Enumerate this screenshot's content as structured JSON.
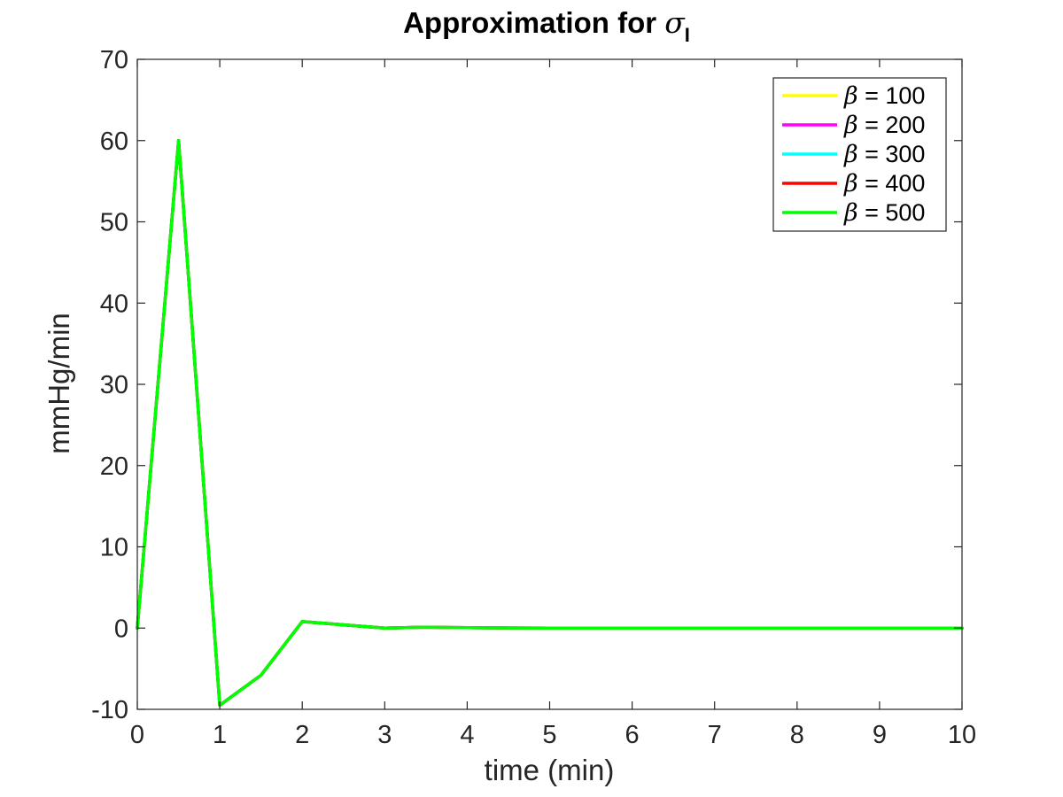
{
  "chart_data": {
    "type": "line",
    "title": {
      "text": "Approximation for ",
      "symbol": "σ",
      "subscript": "I"
    },
    "xlabel": "time (min)",
    "ylabel": "mmHg/min",
    "xlim": [
      0,
      10
    ],
    "ylim": [
      -10,
      70
    ],
    "xticks": [
      "0",
      "1",
      "2",
      "3",
      "4",
      "5",
      "6",
      "7",
      "8",
      "9",
      "10"
    ],
    "yticks": [
      "-10",
      "0",
      "10",
      "20",
      "30",
      "40",
      "50",
      "60",
      "70"
    ],
    "grid": false,
    "legend_position": "top-right",
    "x": [
      0,
      0.5,
      1,
      1.5,
      2,
      2.5,
      3,
      3.5,
      4,
      4.5,
      5,
      5.5,
      6,
      6.5,
      7,
      7.5,
      8,
      8.5,
      9,
      9.5,
      10
    ],
    "series": [
      {
        "legend_symbol": "β",
        "legend_value": "= 100",
        "color": "#ffff00",
        "values": [
          0,
          60,
          -9.5,
          -5.8,
          0.8,
          0.4,
          0.0,
          0.1,
          0.05,
          0.02,
          0,
          0,
          0,
          0,
          0,
          0,
          0,
          0,
          0,
          0,
          0
        ]
      },
      {
        "legend_symbol": "β",
        "legend_value": "= 200",
        "color": "#ff00ff",
        "values": [
          0,
          60,
          -9.5,
          -5.8,
          0.8,
          0.4,
          0.0,
          0.1,
          0.05,
          0.02,
          0,
          0,
          0,
          0,
          0,
          0,
          0,
          0,
          0,
          0,
          0
        ]
      },
      {
        "legend_symbol": "β",
        "legend_value": "= 300",
        "color": "#00ffff",
        "values": [
          0,
          60,
          -9.5,
          -5.8,
          0.8,
          0.4,
          0.0,
          0.1,
          0.05,
          0.02,
          0,
          0,
          0,
          0,
          0,
          0,
          0,
          0,
          0,
          0,
          0
        ]
      },
      {
        "legend_symbol": "β",
        "legend_value": "= 400",
        "color": "#ff0000",
        "values": [
          0,
          60,
          -9.5,
          -5.8,
          0.8,
          0.4,
          0.0,
          0.1,
          0.05,
          0.02,
          0,
          0,
          0,
          0,
          0,
          0,
          0,
          0,
          0,
          0,
          0
        ]
      },
      {
        "legend_symbol": "β",
        "legend_value": "= 500",
        "color": "#00ff00",
        "values": [
          0,
          60,
          -9.5,
          -5.8,
          0.8,
          0.4,
          0.0,
          0.1,
          0.05,
          0.02,
          0,
          0,
          0,
          0,
          0,
          0,
          0,
          0,
          0,
          0,
          0
        ]
      }
    ]
  }
}
